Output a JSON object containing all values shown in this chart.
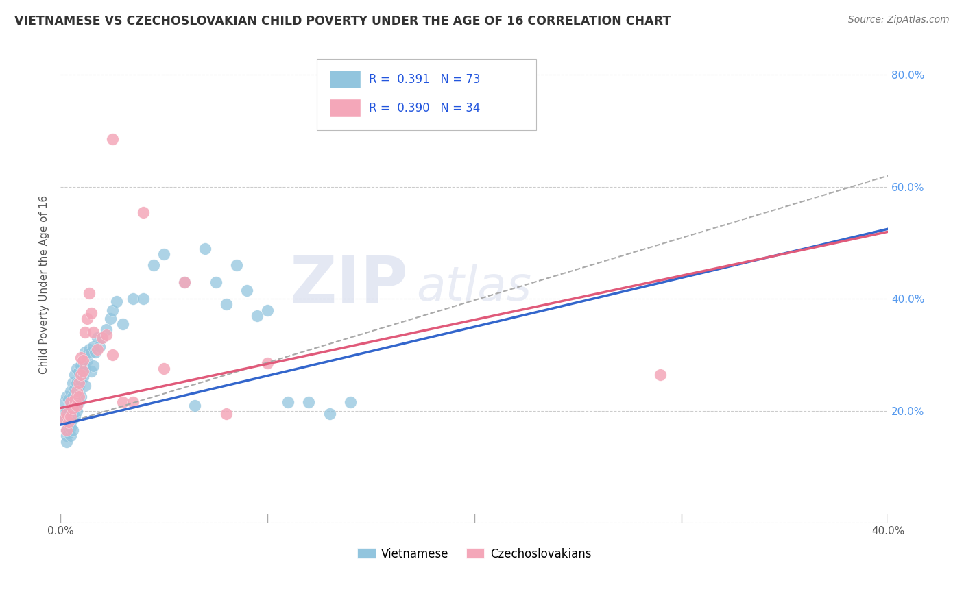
{
  "title": "VIETNAMESE VS CZECHOSLOVAKIAN CHILD POVERTY UNDER THE AGE OF 16 CORRELATION CHART",
  "source": "Source: ZipAtlas.com",
  "ylabel": "Child Poverty Under the Age of 16",
  "xmin": 0.0,
  "xmax": 0.4,
  "ymin": 0.0,
  "ymax": 0.85,
  "yticks": [
    0.0,
    0.2,
    0.4,
    0.6,
    0.8
  ],
  "ytick_labels": [
    "",
    "20.0%",
    "40.0%",
    "60.0%",
    "80.0%"
  ],
  "xticks": [
    0.0,
    0.05,
    0.1,
    0.15,
    0.2,
    0.25,
    0.3,
    0.35,
    0.4
  ],
  "xtick_labels": [
    "0.0%",
    "",
    "",
    "",
    "",
    "",
    "",
    "",
    "40.0%"
  ],
  "blue_color": "#92c5de",
  "pink_color": "#f4a7b9",
  "blue_line_color": "#3366cc",
  "pink_line_color": "#e05a7a",
  "dashed_line_color": "#aaaaaa",
  "watermark_zip": "ZIP",
  "watermark_atlas": "atlas",
  "viet_line_x": [
    0.0,
    0.4
  ],
  "viet_line_y": [
    0.175,
    0.525
  ],
  "czech_line_x": [
    0.0,
    0.4
  ],
  "czech_line_y": [
    0.205,
    0.52
  ],
  "dashed_line_x": [
    0.0,
    0.4
  ],
  "dashed_line_y": [
    0.175,
    0.62
  ],
  "vietnamese_points": [
    [
      0.002,
      0.215
    ],
    [
      0.002,
      0.195
    ],
    [
      0.002,
      0.185
    ],
    [
      0.003,
      0.225
    ],
    [
      0.003,
      0.2
    ],
    [
      0.003,
      0.18
    ],
    [
      0.003,
      0.165
    ],
    [
      0.003,
      0.155
    ],
    [
      0.003,
      0.145
    ],
    [
      0.004,
      0.22
    ],
    [
      0.004,
      0.195
    ],
    [
      0.004,
      0.175
    ],
    [
      0.004,
      0.16
    ],
    [
      0.005,
      0.235
    ],
    [
      0.005,
      0.21
    ],
    [
      0.005,
      0.185
    ],
    [
      0.005,
      0.17
    ],
    [
      0.005,
      0.155
    ],
    [
      0.006,
      0.25
    ],
    [
      0.006,
      0.225
    ],
    [
      0.006,
      0.205
    ],
    [
      0.006,
      0.185
    ],
    [
      0.006,
      0.165
    ],
    [
      0.007,
      0.265
    ],
    [
      0.007,
      0.24
    ],
    [
      0.007,
      0.215
    ],
    [
      0.007,
      0.19
    ],
    [
      0.008,
      0.275
    ],
    [
      0.008,
      0.25
    ],
    [
      0.008,
      0.225
    ],
    [
      0.008,
      0.2
    ],
    [
      0.009,
      0.27
    ],
    [
      0.009,
      0.245
    ],
    [
      0.009,
      0.215
    ],
    [
      0.01,
      0.28
    ],
    [
      0.01,
      0.255
    ],
    [
      0.01,
      0.225
    ],
    [
      0.011,
      0.28
    ],
    [
      0.011,
      0.26
    ],
    [
      0.012,
      0.305
    ],
    [
      0.012,
      0.275
    ],
    [
      0.012,
      0.245
    ],
    [
      0.013,
      0.29
    ],
    [
      0.014,
      0.31
    ],
    [
      0.015,
      0.305
    ],
    [
      0.015,
      0.27
    ],
    [
      0.016,
      0.315
    ],
    [
      0.016,
      0.28
    ],
    [
      0.017,
      0.305
    ],
    [
      0.018,
      0.33
    ],
    [
      0.019,
      0.315
    ],
    [
      0.02,
      0.33
    ],
    [
      0.022,
      0.345
    ],
    [
      0.024,
      0.365
    ],
    [
      0.025,
      0.38
    ],
    [
      0.027,
      0.395
    ],
    [
      0.03,
      0.355
    ],
    [
      0.035,
      0.4
    ],
    [
      0.04,
      0.4
    ],
    [
      0.045,
      0.46
    ],
    [
      0.05,
      0.48
    ],
    [
      0.06,
      0.43
    ],
    [
      0.065,
      0.21
    ],
    [
      0.07,
      0.49
    ],
    [
      0.075,
      0.43
    ],
    [
      0.08,
      0.39
    ],
    [
      0.085,
      0.46
    ],
    [
      0.09,
      0.415
    ],
    [
      0.095,
      0.37
    ],
    [
      0.1,
      0.38
    ],
    [
      0.11,
      0.215
    ],
    [
      0.12,
      0.215
    ],
    [
      0.13,
      0.195
    ],
    [
      0.14,
      0.215
    ]
  ],
  "czechoslovakian_points": [
    [
      0.002,
      0.185
    ],
    [
      0.003,
      0.195
    ],
    [
      0.003,
      0.165
    ],
    [
      0.004,
      0.18
    ],
    [
      0.005,
      0.215
    ],
    [
      0.005,
      0.19
    ],
    [
      0.006,
      0.205
    ],
    [
      0.007,
      0.22
    ],
    [
      0.008,
      0.235
    ],
    [
      0.008,
      0.21
    ],
    [
      0.009,
      0.25
    ],
    [
      0.009,
      0.225
    ],
    [
      0.01,
      0.295
    ],
    [
      0.01,
      0.265
    ],
    [
      0.011,
      0.29
    ],
    [
      0.011,
      0.27
    ],
    [
      0.012,
      0.34
    ],
    [
      0.013,
      0.365
    ],
    [
      0.014,
      0.41
    ],
    [
      0.015,
      0.375
    ],
    [
      0.016,
      0.34
    ],
    [
      0.018,
      0.31
    ],
    [
      0.02,
      0.33
    ],
    [
      0.022,
      0.335
    ],
    [
      0.025,
      0.3
    ],
    [
      0.025,
      0.685
    ],
    [
      0.03,
      0.215
    ],
    [
      0.035,
      0.215
    ],
    [
      0.04,
      0.555
    ],
    [
      0.05,
      0.275
    ],
    [
      0.06,
      0.43
    ],
    [
      0.08,
      0.195
    ],
    [
      0.1,
      0.285
    ],
    [
      0.29,
      0.265
    ]
  ]
}
